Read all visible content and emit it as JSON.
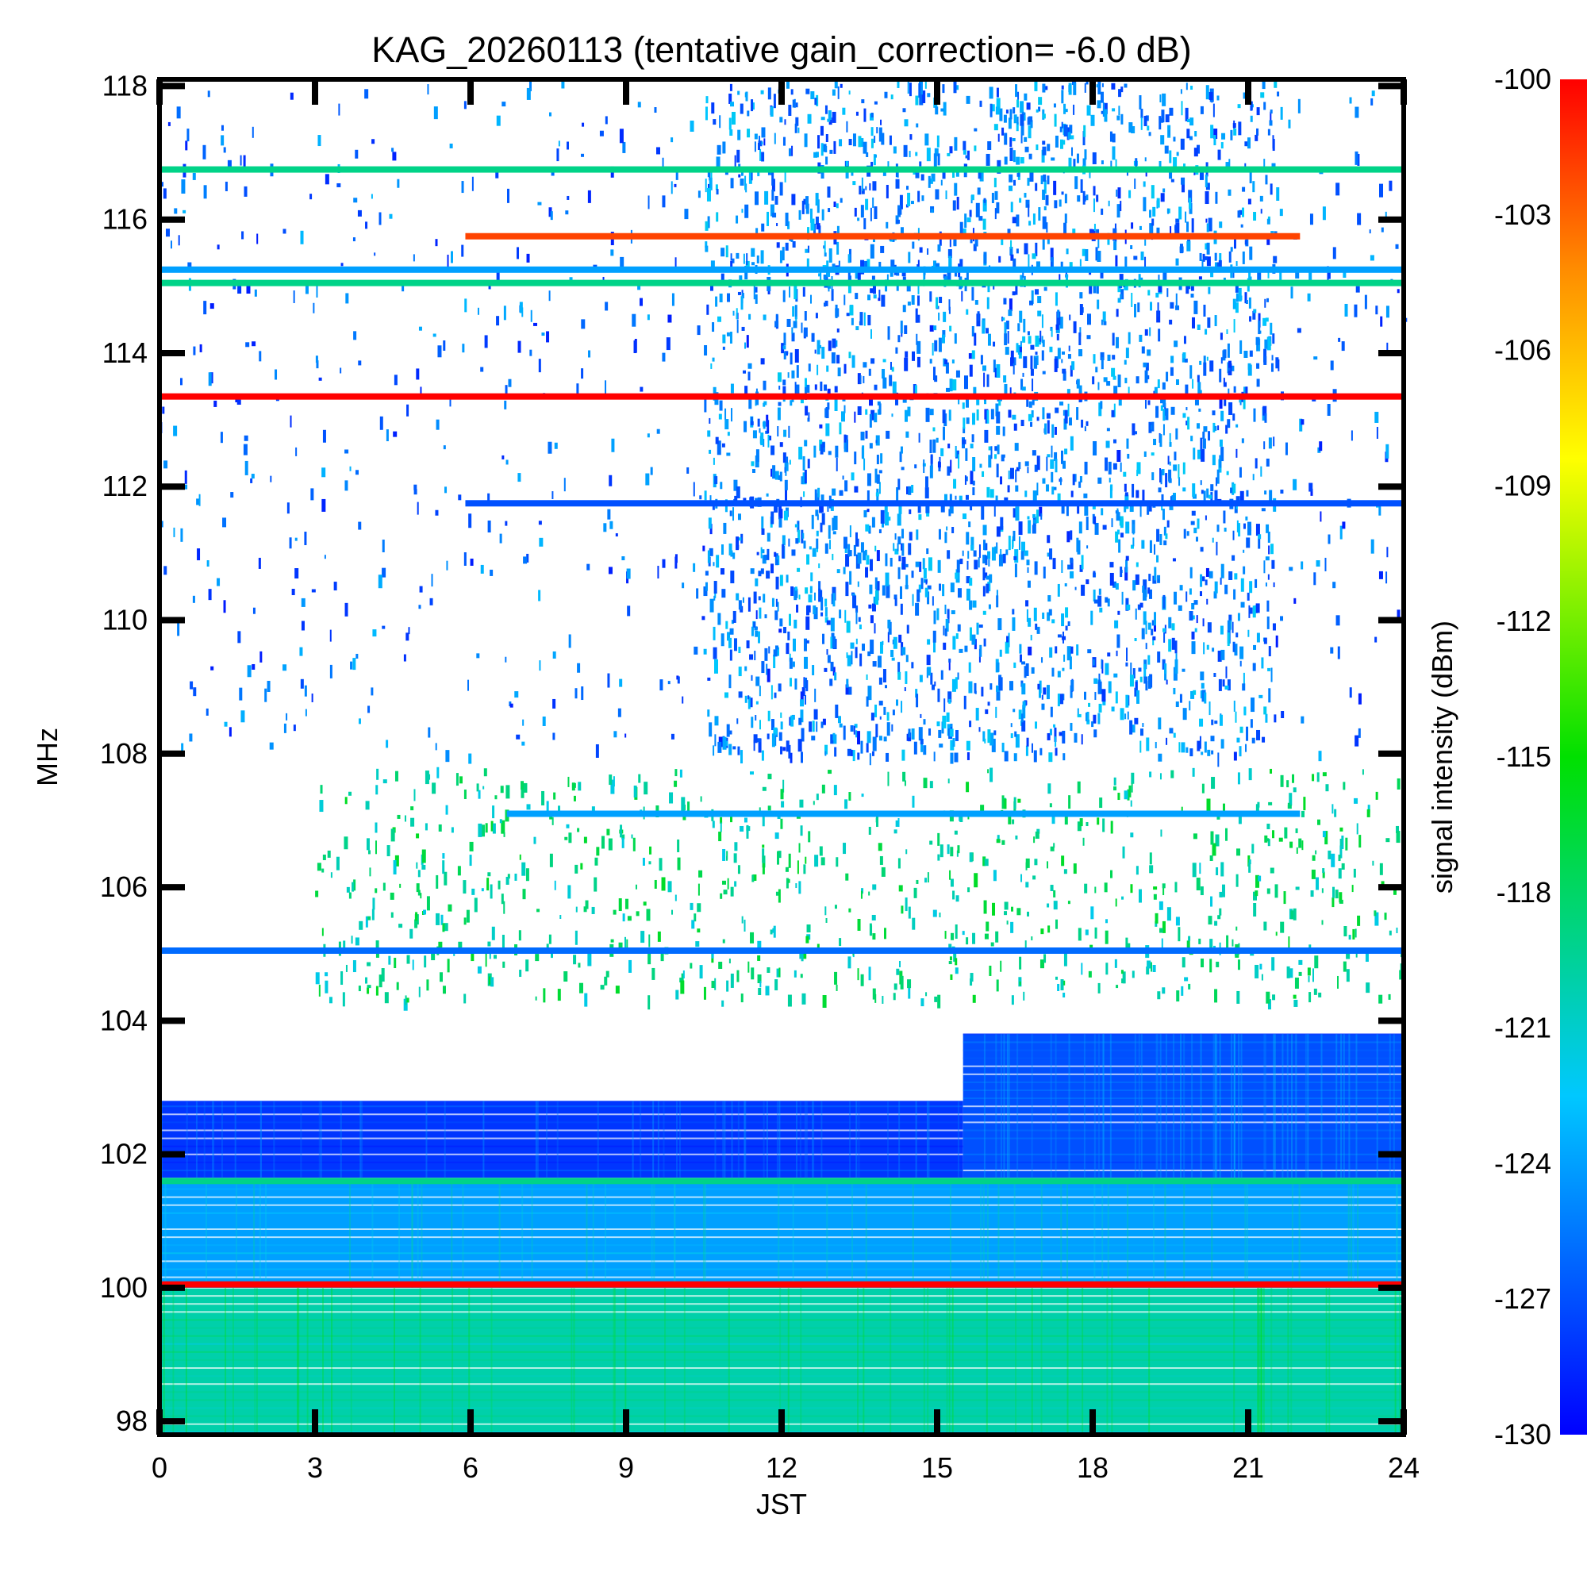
{
  "chart_data": {
    "type": "heatmap",
    "title": "KAG_20260113 (tentative gain_correction= -6.0 dB)",
    "xlabel": "JST",
    "ylabel": "MHz",
    "xlim": [
      0,
      24
    ],
    "ylim": [
      97.8,
      118.1
    ],
    "x_ticks": [
      "0",
      "3",
      "6",
      "9",
      "12",
      "15",
      "18",
      "21",
      "24"
    ],
    "x_tick_values": [
      0,
      3,
      6,
      9,
      12,
      15,
      18,
      21,
      24
    ],
    "y_ticks": [
      "98",
      "100",
      "102",
      "104",
      "106",
      "108",
      "110",
      "112",
      "114",
      "116",
      "118"
    ],
    "y_tick_values": [
      98,
      100,
      102,
      104,
      106,
      108,
      110,
      112,
      114,
      116,
      118
    ],
    "colorbar": {
      "label": "signal intensity (dBm)",
      "min": -130,
      "max": -100,
      "ticks": [
        "-100",
        "-103",
        "-106",
        "-109",
        "-112",
        "-115",
        "-118",
        "-121",
        "-124",
        "-127",
        "-130"
      ],
      "tick_values": [
        -100,
        -103,
        -106,
        -109,
        -112,
        -115,
        -118,
        -121,
        -124,
        -127,
        -130
      ]
    },
    "carriers": [
      {
        "freq": 116.75,
        "t0": 0,
        "t1": 24,
        "dbm": -119
      },
      {
        "freq": 115.75,
        "t0": 5.9,
        "t1": 22.0,
        "dbm": -102
      },
      {
        "freq": 115.25,
        "t0": 0,
        "t1": 24,
        "dbm": -124
      },
      {
        "freq": 115.05,
        "t0": 0,
        "t1": 24,
        "dbm": -119
      },
      {
        "freq": 113.35,
        "t0": 0,
        "t1": 24,
        "dbm": -100
      },
      {
        "freq": 111.75,
        "t0": 5.9,
        "t1": 24,
        "dbm": -127
      },
      {
        "freq": 107.1,
        "t0": 6.7,
        "t1": 22.0,
        "dbm": -124
      },
      {
        "freq": 105.05,
        "t0": 0,
        "t1": 24,
        "dbm": -126
      },
      {
        "freq": 101.6,
        "t0": 0,
        "t1": 24,
        "dbm": -119
      },
      {
        "freq": 100.05,
        "t0": 0,
        "t1": 24,
        "dbm": -100
      }
    ],
    "noise_floor_regions": [
      {
        "f0": 97.8,
        "f1": 100.0,
        "t0": 0,
        "t1": 24,
        "dbm": -120
      },
      {
        "f0": 100.0,
        "f1": 101.6,
        "t0": 0,
        "t1": 24,
        "dbm": -124
      },
      {
        "f0": 101.6,
        "f1": 102.8,
        "t0": 0,
        "t1": 15.5,
        "dbm": -128
      },
      {
        "f0": 101.6,
        "f1": 103.8,
        "t0": 15.5,
        "t1": 24,
        "dbm": -127
      }
    ],
    "scatter_regions": [
      {
        "f0": 108.0,
        "f1": 118.1,
        "t0": 0,
        "t1": 24,
        "dbm": -129,
        "density": "sparse"
      },
      {
        "f0": 108.0,
        "f1": 118.1,
        "t0": 10.5,
        "t1": 21.5,
        "dbm": -128,
        "density": "dense"
      },
      {
        "f0": 104.3,
        "f1": 107.8,
        "t0": 3.0,
        "t1": 24,
        "dbm": -122,
        "density": "sparse"
      }
    ]
  }
}
